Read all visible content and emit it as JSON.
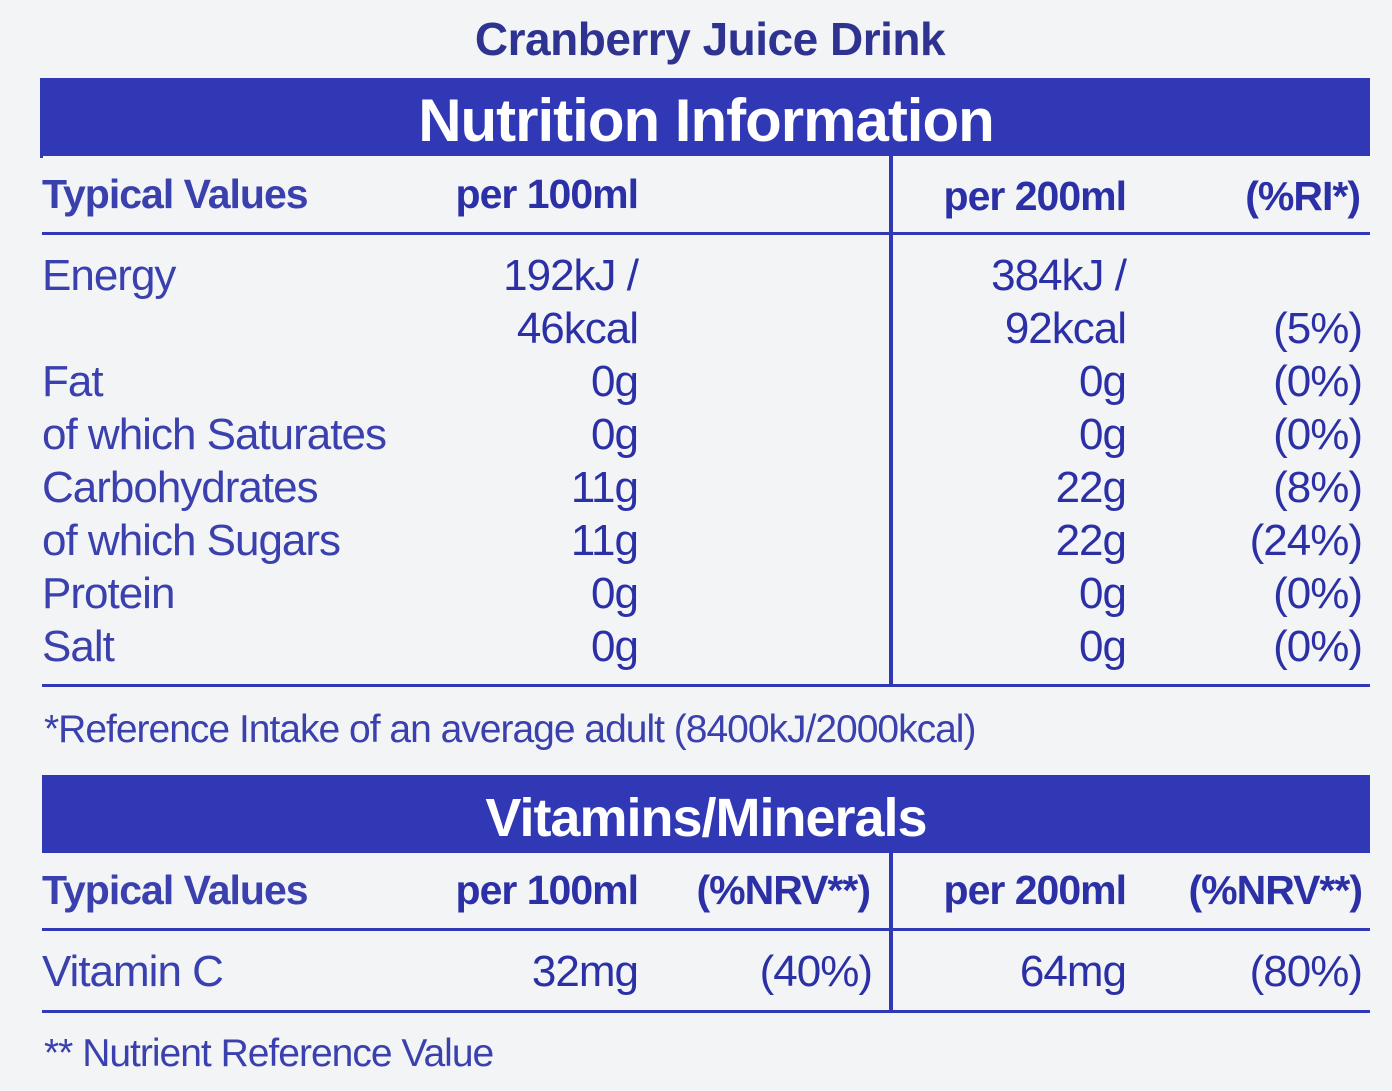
{
  "title": "Cranberry Juice Drink",
  "nutrition": {
    "heading": "Nutrition Information",
    "headers": {
      "typical": "Typical Values",
      "per100": "per 100ml",
      "per200": "per 200ml",
      "ri": "(%RI*)"
    },
    "rows": [
      {
        "label": "Energy",
        "per100": "192kJ /",
        "per200": "384kJ /",
        "ri": ""
      },
      {
        "label": "",
        "per100": "46kcal",
        "per200": "92kcal",
        "ri": "(5%)"
      },
      {
        "label": "Fat",
        "per100": "0g",
        "per200": "0g",
        "ri": "(0%)"
      },
      {
        "label": "of which Saturates",
        "per100": "0g",
        "per200": "0g",
        "ri": "(0%)"
      },
      {
        "label": "Carbohydrates",
        "per100": "11g",
        "per200": "22g",
        "ri": "(8%)"
      },
      {
        "label": "of which Sugars",
        "per100": "11g",
        "per200": "22g",
        "ri": "(24%)"
      },
      {
        "label": "Protein",
        "per100": "0g",
        "per200": "0g",
        "ri": "(0%)"
      },
      {
        "label": "Salt",
        "per100": "0g",
        "per200": "0g",
        "ri": "(0%)"
      }
    ],
    "footnote": "*Reference Intake of an average adult (8400kJ/2000kcal)"
  },
  "vitamins": {
    "heading": "Vitamins/Minerals",
    "headers": {
      "typical": "Typical Values",
      "per100": "per 100ml",
      "nrv100": "(%NRV**)",
      "per200": "per 200ml",
      "nrv200": "(%NRV**)"
    },
    "rows": [
      {
        "label": "Vitamin C",
        "per100": "32mg",
        "nrv100": "(40%)",
        "per200": "64mg",
        "nrv200": "(80%)"
      }
    ],
    "footnote": "** Nutrient Reference Value"
  }
}
